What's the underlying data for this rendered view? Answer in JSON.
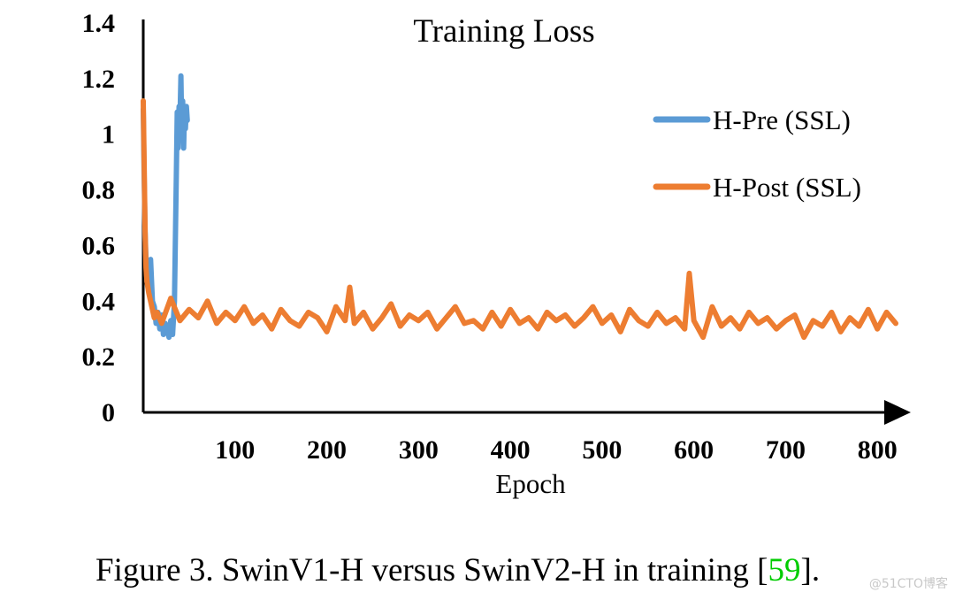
{
  "chart_data": {
    "type": "line",
    "title": "Training Loss",
    "xlabel": "Epoch",
    "ylabel": "",
    "xlim": [
      0,
      820
    ],
    "ylim": [
      0,
      1.4
    ],
    "x_ticks": [
      "100",
      "200",
      "300",
      "400",
      "500",
      "600",
      "700",
      "800"
    ],
    "y_ticks": [
      "0",
      "0.2",
      "0.4",
      "0.6",
      "0.8",
      "1",
      "1.2",
      "1.4"
    ],
    "grid": false,
    "legend_position": "top-right",
    "series": [
      {
        "name": "H-Pre (SSL)",
        "color": "#5b9bd5",
        "x": [
          0,
          1,
          2,
          3,
          4,
          6,
          8,
          10,
          12,
          14,
          16,
          18,
          20,
          22,
          24,
          26,
          28,
          30,
          32,
          34,
          36,
          37,
          38,
          39,
          40,
          41,
          42,
          43,
          44,
          45,
          46,
          47,
          48
        ],
        "y": [
          1.09,
          0.85,
          0.65,
          0.55,
          0.47,
          0.44,
          0.55,
          0.4,
          0.38,
          0.32,
          0.36,
          0.3,
          0.35,
          0.28,
          0.32,
          0.3,
          0.27,
          0.33,
          0.28,
          0.4,
          0.85,
          1.08,
          0.95,
          1.1,
          1.05,
          1.21,
          1.0,
          1.12,
          0.95,
          1.09,
          1.02,
          1.1,
          1.05
        ]
      },
      {
        "name": "H-Post (SSL)",
        "color": "#ed7d31",
        "x": [
          0,
          1,
          2,
          3,
          4,
          5,
          6,
          8,
          10,
          12,
          15,
          20,
          30,
          40,
          50,
          60,
          70,
          80,
          90,
          100,
          110,
          120,
          130,
          140,
          150,
          160,
          170,
          180,
          190,
          200,
          210,
          220,
          225,
          230,
          240,
          250,
          260,
          270,
          280,
          290,
          300,
          310,
          320,
          330,
          340,
          350,
          360,
          370,
          380,
          390,
          400,
          410,
          420,
          430,
          440,
          450,
          460,
          470,
          480,
          490,
          500,
          510,
          520,
          530,
          540,
          550,
          560,
          570,
          580,
          590,
          595,
          600,
          610,
          620,
          630,
          640,
          650,
          660,
          670,
          680,
          690,
          700,
          710,
          720,
          730,
          740,
          750,
          760,
          770,
          780,
          790,
          800,
          810,
          820
        ],
        "y": [
          1.12,
          0.9,
          0.65,
          0.52,
          0.47,
          0.45,
          0.43,
          0.4,
          0.37,
          0.34,
          0.36,
          0.32,
          0.41,
          0.33,
          0.37,
          0.34,
          0.4,
          0.32,
          0.36,
          0.33,
          0.38,
          0.32,
          0.35,
          0.3,
          0.37,
          0.33,
          0.31,
          0.36,
          0.34,
          0.29,
          0.38,
          0.33,
          0.45,
          0.32,
          0.36,
          0.3,
          0.34,
          0.39,
          0.31,
          0.35,
          0.33,
          0.36,
          0.3,
          0.34,
          0.38,
          0.32,
          0.33,
          0.3,
          0.36,
          0.31,
          0.37,
          0.32,
          0.34,
          0.3,
          0.36,
          0.33,
          0.35,
          0.31,
          0.34,
          0.38,
          0.32,
          0.35,
          0.29,
          0.37,
          0.33,
          0.31,
          0.36,
          0.32,
          0.34,
          0.3,
          0.5,
          0.33,
          0.27,
          0.38,
          0.31,
          0.34,
          0.3,
          0.36,
          0.32,
          0.34,
          0.3,
          0.33,
          0.35,
          0.27,
          0.33,
          0.31,
          0.36,
          0.29,
          0.34,
          0.31,
          0.37,
          0.3,
          0.36,
          0.32
        ]
      }
    ],
    "axis_color": "#000000"
  },
  "caption": {
    "text_before": "Figure 3. SwinV1-H versus SwinV2-H in training [",
    "ref": "59",
    "text_after": "].",
    "ref_color": "#00cc00"
  },
  "watermark": "@51CTO博客"
}
